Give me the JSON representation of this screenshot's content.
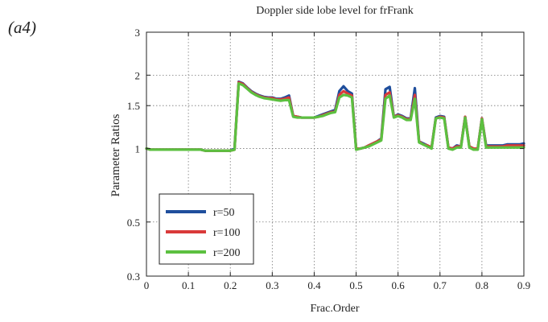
{
  "panel_label": "(a4)",
  "chart_data": {
    "type": "line",
    "title": "Doppler side lobe level for frFrank",
    "xlabel": "Frac.Order",
    "ylabel": "Parameter Ratios",
    "xlim": [
      0,
      0.9
    ],
    "ylim": [
      0.3,
      3
    ],
    "yscale": "log",
    "grid": true,
    "legend_position": "lower-left",
    "x_ticks": [
      0,
      0.1,
      0.2,
      0.3,
      0.4,
      0.5,
      0.6,
      0.7,
      0.8,
      0.9
    ],
    "x_tick_labels": [
      "0",
      "0.1",
      "0.2",
      "0.3",
      "0.4",
      "0.5",
      "0.6",
      "0.7",
      "0.8",
      "0.9"
    ],
    "y_ticks": [
      0.3,
      0.5,
      1,
      1.5,
      2,
      3
    ],
    "y_tick_labels": [
      "0.3",
      "0.5",
      "1",
      "1.5",
      "2",
      "3"
    ],
    "x": [
      0,
      0.01,
      0.02,
      0.03,
      0.04,
      0.05,
      0.06,
      0.07,
      0.08,
      0.09,
      0.1,
      0.11,
      0.12,
      0.13,
      0.14,
      0.15,
      0.16,
      0.17,
      0.18,
      0.19,
      0.2,
      0.21,
      0.22,
      0.23,
      0.24,
      0.25,
      0.26,
      0.27,
      0.28,
      0.29,
      0.3,
      0.31,
      0.32,
      0.33,
      0.34,
      0.35,
      0.36,
      0.37,
      0.38,
      0.39,
      0.4,
      0.41,
      0.42,
      0.43,
      0.44,
      0.45,
      0.46,
      0.47,
      0.48,
      0.49,
      0.5,
      0.51,
      0.52,
      0.53,
      0.54,
      0.55,
      0.56,
      0.57,
      0.58,
      0.59,
      0.6,
      0.61,
      0.62,
      0.63,
      0.64,
      0.65,
      0.66,
      0.67,
      0.68,
      0.69,
      0.7,
      0.71,
      0.72,
      0.73,
      0.74,
      0.75,
      0.76,
      0.77,
      0.78,
      0.79,
      0.8,
      0.81,
      0.82,
      0.83,
      0.84,
      0.85,
      0.86,
      0.87,
      0.88,
      0.89,
      0.9
    ],
    "series": [
      {
        "name": "r=50",
        "color": "#1f4e9c",
        "values": [
          1.0,
          0.99,
          0.99,
          0.99,
          0.99,
          0.99,
          0.99,
          0.99,
          0.99,
          0.99,
          0.99,
          0.99,
          0.99,
          0.99,
          0.98,
          0.98,
          0.98,
          0.98,
          0.98,
          0.98,
          0.98,
          1.0,
          1.88,
          1.85,
          1.78,
          1.72,
          1.68,
          1.65,
          1.63,
          1.62,
          1.62,
          1.6,
          1.6,
          1.62,
          1.65,
          1.36,
          1.35,
          1.34,
          1.34,
          1.34,
          1.34,
          1.36,
          1.38,
          1.4,
          1.42,
          1.44,
          1.72,
          1.8,
          1.72,
          1.68,
          1.0,
          1.0,
          1.01,
          1.03,
          1.05,
          1.07,
          1.1,
          1.75,
          1.79,
          1.35,
          1.38,
          1.36,
          1.33,
          1.33,
          1.77,
          1.07,
          1.05,
          1.03,
          1.01,
          1.34,
          1.36,
          1.35,
          1.01,
          1.0,
          1.03,
          1.02,
          1.35,
          1.02,
          1.0,
          1.0,
          1.33,
          1.03,
          1.03,
          1.03,
          1.03,
          1.03,
          1.04,
          1.04,
          1.04,
          1.04,
          1.05
        ]
      },
      {
        "name": "r=100",
        "color": "#d93a3a",
        "values": [
          1.0,
          0.99,
          0.99,
          0.99,
          0.99,
          0.99,
          0.99,
          0.99,
          0.99,
          0.99,
          0.99,
          0.99,
          0.99,
          0.99,
          0.98,
          0.98,
          0.98,
          0.98,
          0.98,
          0.98,
          0.98,
          0.99,
          1.87,
          1.84,
          1.77,
          1.71,
          1.67,
          1.64,
          1.62,
          1.61,
          1.61,
          1.59,
          1.59,
          1.6,
          1.62,
          1.36,
          1.35,
          1.34,
          1.34,
          1.34,
          1.34,
          1.35,
          1.37,
          1.39,
          1.41,
          1.42,
          1.66,
          1.72,
          1.68,
          1.65,
          1.0,
          1.0,
          1.01,
          1.03,
          1.05,
          1.07,
          1.09,
          1.66,
          1.7,
          1.35,
          1.37,
          1.35,
          1.32,
          1.32,
          1.66,
          1.07,
          1.04,
          1.03,
          1.01,
          1.33,
          1.35,
          1.34,
          1.01,
          1.0,
          1.02,
          1.02,
          1.35,
          1.02,
          1.0,
          1.0,
          1.33,
          1.02,
          1.02,
          1.02,
          1.02,
          1.02,
          1.03,
          1.03,
          1.03,
          1.03,
          1.03
        ]
      },
      {
        "name": "r=200",
        "color": "#5cc040",
        "values": [
          1.0,
          0.99,
          0.99,
          0.99,
          0.99,
          0.99,
          0.99,
          0.99,
          0.99,
          0.99,
          0.99,
          0.99,
          0.99,
          0.99,
          0.98,
          0.98,
          0.98,
          0.98,
          0.98,
          0.98,
          0.98,
          0.99,
          1.85,
          1.82,
          1.76,
          1.7,
          1.66,
          1.63,
          1.61,
          1.6,
          1.59,
          1.58,
          1.57,
          1.58,
          1.58,
          1.35,
          1.34,
          1.34,
          1.34,
          1.34,
          1.34,
          1.35,
          1.36,
          1.38,
          1.4,
          1.41,
          1.62,
          1.66,
          1.65,
          1.62,
          0.99,
          1.0,
          1.01,
          1.02,
          1.04,
          1.06,
          1.08,
          1.6,
          1.65,
          1.34,
          1.36,
          1.34,
          1.31,
          1.31,
          1.6,
          1.06,
          1.04,
          1.02,
          1.0,
          1.33,
          1.34,
          1.33,
          1.0,
          0.99,
          1.01,
          1.01,
          1.34,
          1.01,
          0.99,
          0.99,
          1.32,
          1.01,
          1.01,
          1.01,
          1.01,
          1.01,
          1.01,
          1.01,
          1.01,
          1.01,
          1.01
        ]
      }
    ]
  }
}
